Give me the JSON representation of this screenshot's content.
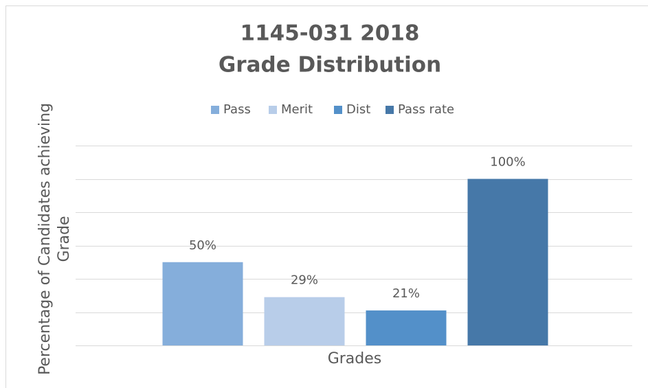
{
  "chart_data": {
    "type": "bar",
    "title": [
      "1145-031 2018",
      "Grade Distribution"
    ],
    "x_label": "Grades",
    "y_label": [
      "Percentage of Candidates achieving",
      "Grade"
    ],
    "categories": [
      null
    ],
    "series": [
      {
        "name": "Pass",
        "color": "#85aedb",
        "values": [
          50
        ],
        "value_labels": [
          "50%"
        ]
      },
      {
        "name": "Merit",
        "color": "#b8cde9",
        "values": [
          29
        ],
        "value_labels": [
          "29%"
        ]
      },
      {
        "name": "Dist",
        "color": "#5390c9",
        "values": [
          21
        ],
        "value_labels": [
          "21%"
        ]
      },
      {
        "name": "Pass rate",
        "color": "#4678a8",
        "values": [
          100
        ],
        "value_labels": [
          "100%"
        ]
      }
    ],
    "ylim": [
      0,
      120
    ],
    "yticks": [
      0,
      20,
      40,
      60,
      80,
      100,
      120
    ],
    "grid": true,
    "legend": "top"
  }
}
